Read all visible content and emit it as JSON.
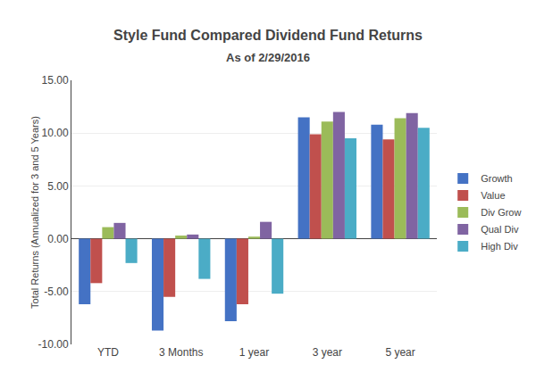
{
  "chart_data": {
    "type": "bar",
    "title": "Style Fund Compared Dividend Fund Returns",
    "subtitle": "As of 2/29/2016",
    "ylabel": "Total Returns (Annualized for 3 and 5 Years)",
    "categories": [
      "YTD",
      "3 Months",
      "1 year",
      "3 year",
      "5 year"
    ],
    "series": [
      {
        "name": "Growth",
        "color": "#4472C4",
        "values": [
          -6.2,
          -8.7,
          -7.8,
          11.5,
          10.8
        ]
      },
      {
        "name": "Value",
        "color": "#C0504D",
        "values": [
          -4.2,
          -5.5,
          -6.2,
          9.9,
          9.4
        ]
      },
      {
        "name": "Div Grow",
        "color": "#9BBB59",
        "values": [
          1.1,
          0.3,
          0.2,
          11.1,
          11.4
        ]
      },
      {
        "name": "Qual Div",
        "color": "#8064A2",
        "values": [
          1.5,
          0.4,
          1.6,
          12.0,
          11.9
        ]
      },
      {
        "name": "High Div",
        "color": "#4BACC6",
        "values": [
          -2.3,
          -3.8,
          -5.2,
          9.5,
          10.5
        ]
      }
    ],
    "ylim": [
      -10.0,
      15.0
    ],
    "yticks": [
      {
        "value": -10.0,
        "label": "-10.00"
      },
      {
        "value": -5.0,
        "label": "-5.00"
      },
      {
        "value": 0.0,
        "label": "0.00"
      },
      {
        "value": 5.0,
        "label": "5.00"
      },
      {
        "value": 10.0,
        "label": "10.00"
      },
      {
        "value": 15.0,
        "label": "15.00"
      }
    ],
    "grid": true,
    "legend": "right"
  }
}
